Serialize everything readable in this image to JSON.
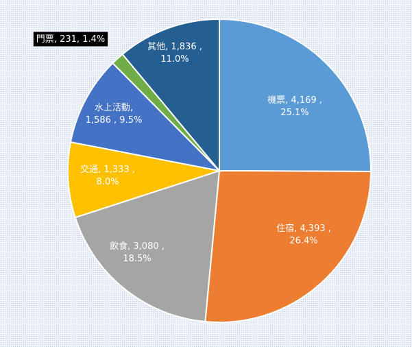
{
  "chart_data": {
    "type": "pie",
    "slices": [
      {
        "name": "機票",
        "value": 4169,
        "value_label": "4,169",
        "percent_label": "25.1%",
        "color": "#5b9bd5"
      },
      {
        "name": "住宿",
        "value": 4393,
        "value_label": "4,393",
        "percent_label": "26.4%",
        "color": "#ed7d31"
      },
      {
        "name": "飲食",
        "value": 3080,
        "value_label": "3,080",
        "percent_label": "18.5%",
        "color": "#a5a5a5"
      },
      {
        "name": "交通",
        "value": 1333,
        "value_label": "1,333",
        "percent_label": "8.0%",
        "color": "#ffc000"
      },
      {
        "name": "水上活動",
        "value": 1586,
        "value_label": "1,586",
        "percent_label": "9.5%",
        "color": "#4472c4"
      },
      {
        "name": "門票",
        "value": 231,
        "value_label": "231",
        "percent_label": "1.4%",
        "color": "#70ad47"
      },
      {
        "name": "其他",
        "value": 1836,
        "value_label": "1,836",
        "percent_label": "11.0%",
        "color": "#255e91"
      }
    ]
  }
}
